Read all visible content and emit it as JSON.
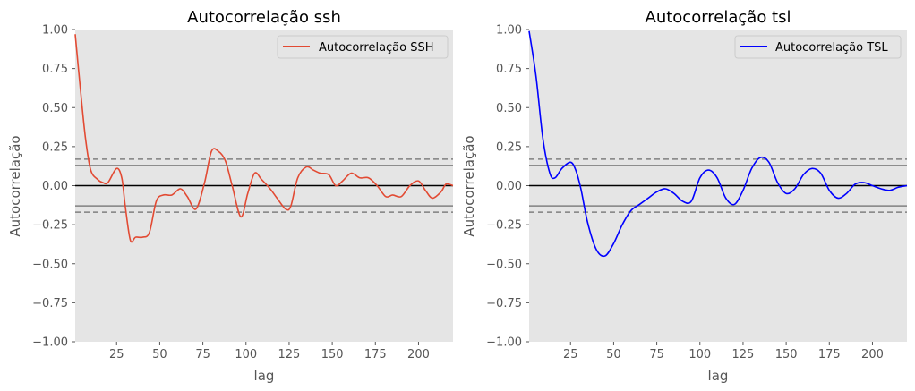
{
  "chart_data": [
    {
      "type": "line",
      "title": "Autocorrelação ssh",
      "xlabel": "lag",
      "ylabel": "Autocorrelação",
      "xlim": [
        1,
        220
      ],
      "ylim": [
        -1.0,
        1.0
      ],
      "xticks": [
        25,
        50,
        75,
        100,
        125,
        150,
        175,
        200
      ],
      "yticks": [
        -1.0,
        -0.75,
        -0.5,
        -0.25,
        0.0,
        0.25,
        0.5,
        0.75,
        1.0
      ],
      "ytick_labels": [
        "−1.00",
        "−0.75",
        "−0.50",
        "−0.25",
        "0.00",
        "0.25",
        "0.50",
        "0.75",
        "1.00"
      ],
      "grid": false,
      "legend_position": "top-right",
      "confidence_solid": 0.13,
      "confidence_dashed": 0.17,
      "series": [
        {
          "name": "Autocorrelação SSH",
          "color": "#e24a33",
          "x": [
            1,
            4,
            7,
            10,
            14,
            17,
            20,
            25,
            28,
            30,
            33,
            36,
            40,
            44,
            48,
            52,
            57,
            62,
            66,
            71,
            76,
            80,
            84,
            88,
            92,
            97,
            101,
            105,
            109,
            114,
            118,
            123,
            126,
            130,
            135,
            139,
            143,
            148,
            152,
            156,
            161,
            166,
            171,
            176,
            181,
            185,
            190,
            195,
            200,
            204,
            208,
            213,
            216,
            220
          ],
          "y": [
            0.97,
            0.62,
            0.3,
            0.1,
            0.04,
            0.02,
            0.02,
            0.11,
            0.05,
            -0.13,
            -0.35,
            -0.33,
            -0.33,
            -0.3,
            -0.1,
            -0.06,
            -0.06,
            -0.02,
            -0.07,
            -0.15,
            0.02,
            0.22,
            0.22,
            0.16,
            0.0,
            -0.2,
            -0.05,
            0.08,
            0.04,
            -0.02,
            -0.08,
            -0.15,
            -0.13,
            0.05,
            0.12,
            0.1,
            0.08,
            0.07,
            0.0,
            0.03,
            0.08,
            0.05,
            0.05,
            0.0,
            -0.07,
            -0.06,
            -0.07,
            0.0,
            0.03,
            -0.03,
            -0.08,
            -0.04,
            0.01,
            0.0
          ]
        }
      ]
    },
    {
      "type": "line",
      "title": "Autocorrelação tsl",
      "xlabel": "lag",
      "ylabel": "Autocorrelação",
      "xlim": [
        1,
        220
      ],
      "ylim": [
        -1.0,
        1.0
      ],
      "xticks": [
        25,
        50,
        75,
        100,
        125,
        150,
        175,
        200
      ],
      "yticks": [
        -1.0,
        -0.75,
        -0.5,
        -0.25,
        0.0,
        0.25,
        0.5,
        0.75,
        1.0
      ],
      "ytick_labels": [
        "−1.00",
        "−0.75",
        "−0.50",
        "−0.25",
        "0.00",
        "0.25",
        "0.50",
        "0.75",
        "1.00"
      ],
      "grid": false,
      "legend_position": "top-right",
      "confidence_solid": 0.13,
      "confidence_dashed": 0.17,
      "series": [
        {
          "name": "Autocorrelação TSL",
          "color": "#0000ff",
          "x": [
            1,
            5,
            9,
            13,
            16,
            20,
            25,
            28,
            31,
            35,
            40,
            45,
            50,
            55,
            60,
            65,
            70,
            75,
            80,
            85,
            90,
            95,
            100,
            105,
            110,
            115,
            120,
            125,
            130,
            135,
            140,
            145,
            150,
            155,
            160,
            165,
            170,
            175,
            180,
            185,
            190,
            195,
            200,
            205,
            210,
            215,
            220
          ],
          "y": [
            0.99,
            0.7,
            0.3,
            0.08,
            0.05,
            0.11,
            0.15,
            0.1,
            -0.02,
            -0.24,
            -0.41,
            -0.45,
            -0.37,
            -0.25,
            -0.16,
            -0.12,
            -0.08,
            -0.04,
            -0.02,
            -0.05,
            -0.1,
            -0.1,
            0.05,
            0.1,
            0.05,
            -0.08,
            -0.12,
            -0.03,
            0.11,
            0.18,
            0.15,
            0.02,
            -0.05,
            -0.02,
            0.07,
            0.11,
            0.08,
            -0.03,
            -0.08,
            -0.05,
            0.01,
            0.02,
            0.0,
            -0.02,
            -0.03,
            -0.01,
            0.0
          ]
        }
      ]
    }
  ]
}
